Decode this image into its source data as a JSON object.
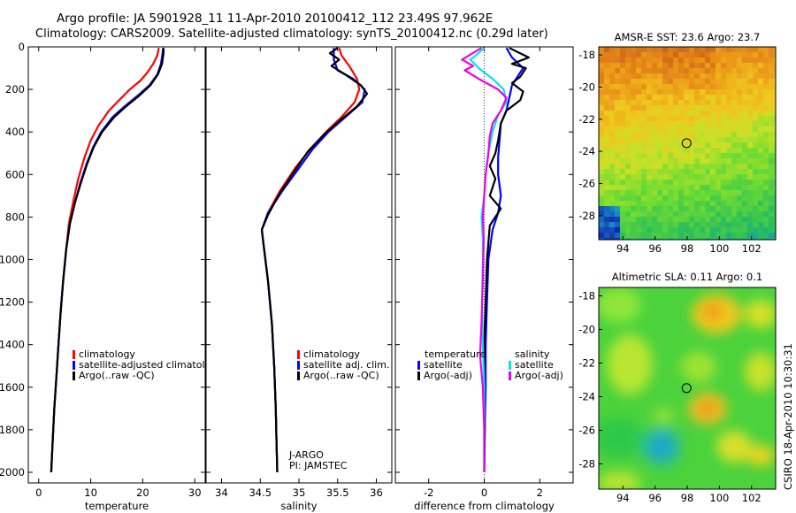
{
  "header": {
    "line1": "Argo profile: JA 5901928_11 11-Apr-2010 20100412_112 23.49S 97.962E",
    "line2": "Climatology: CARS2009. Satellite-adjusted climatology: synTS_20100412.nc (0.29d later)"
  },
  "footer": {
    "side_text": "CSIRO 18-Apr-2010 10:30:31"
  },
  "colors": {
    "climatology": "#ff0000",
    "satellite": "#0000ff",
    "argo": "#000000",
    "sal_satellite": "#00e5ee",
    "sal_argo": "#ee00ee"
  },
  "chart_data": [
    {
      "type": "line",
      "xlabel": "temperature",
      "xlim": [
        -2,
        32
      ],
      "ylim": [
        2050,
        0
      ],
      "xticks": [
        "0",
        "10",
        "20",
        "30"
      ],
      "yticks": [
        "0",
        "200",
        "400",
        "600",
        "800",
        "1000",
        "1200",
        "1400",
        "1600",
        "1800",
        "2000"
      ],
      "legend": [
        "climatology",
        "satellite-adjusted climatology",
        "Argo(..raw -QC)"
      ],
      "series": [
        {
          "name": "climatology",
          "color": "#ff0000",
          "points": [
            [
              23.1,
              5
            ],
            [
              22.8,
              40
            ],
            [
              22.0,
              80
            ],
            [
              20.9,
              120
            ],
            [
              19.5,
              160
            ],
            [
              17.5,
              200
            ],
            [
              15.5,
              250
            ],
            [
              13.5,
              300
            ],
            [
              11.5,
              370
            ],
            [
              10.0,
              440
            ],
            [
              8.8,
              520
            ],
            [
              7.6,
              620
            ],
            [
              6.7,
              720
            ],
            [
              5.8,
              830
            ],
            [
              5.3,
              950
            ],
            [
              4.7,
              1100
            ],
            [
              4.2,
              1250
            ],
            [
              3.8,
              1400
            ],
            [
              3.4,
              1550
            ],
            [
              3.0,
              1700
            ],
            [
              2.7,
              1850
            ],
            [
              2.4,
              2000
            ]
          ]
        },
        {
          "name": "satellite-adjusted climatology",
          "color": "#0000ff",
          "points": [
            [
              23.9,
              5
            ],
            [
              23.8,
              30
            ],
            [
              23.5,
              80
            ],
            [
              22.8,
              130
            ],
            [
              21.3,
              180
            ],
            [
              19.0,
              230
            ],
            [
              16.5,
              280
            ],
            [
              14.2,
              330
            ],
            [
              12.0,
              400
            ],
            [
              10.5,
              470
            ],
            [
              9.2,
              550
            ],
            [
              8.0,
              640
            ],
            [
              7.0,
              730
            ],
            [
              6.0,
              830
            ],
            [
              5.3,
              950
            ],
            [
              4.7,
              1100
            ],
            [
              4.2,
              1250
            ],
            [
              3.8,
              1400
            ],
            [
              3.4,
              1550
            ],
            [
              3.0,
              1700
            ],
            [
              2.7,
              1850
            ],
            [
              2.4,
              2000
            ]
          ]
        },
        {
          "name": "Argo(..raw -QC)",
          "color": "#000000",
          "points": [
            [
              24.0,
              5
            ],
            [
              24.0,
              30
            ],
            [
              23.7,
              80
            ],
            [
              22.9,
              130
            ],
            [
              21.5,
              180
            ],
            [
              19.3,
              230
            ],
            [
              16.8,
              280
            ],
            [
              14.5,
              330
            ],
            [
              12.2,
              400
            ],
            [
              10.6,
              470
            ],
            [
              9.3,
              550
            ],
            [
              8.1,
              640
            ],
            [
              7.0,
              730
            ],
            [
              6.0,
              830
            ],
            [
              5.3,
              950
            ],
            [
              4.7,
              1100
            ],
            [
              4.2,
              1250
            ],
            [
              3.8,
              1400
            ],
            [
              3.4,
              1550
            ],
            [
              3.0,
              1700
            ],
            [
              2.7,
              1850
            ],
            [
              2.4,
              2000
            ]
          ]
        }
      ]
    },
    {
      "type": "line",
      "xlabel": "salinity",
      "xlim": [
        33.8,
        36.2
      ],
      "ylim": [
        2050,
        0
      ],
      "xticks": [
        "34",
        "34.5",
        "35",
        "35.5",
        "36"
      ],
      "legend": [
        "climatology",
        "satellite adj. clim.",
        "Argo(..raw -QC)"
      ],
      "annotation": [
        "J-ARGO",
        "PI: JAMSTEC"
      ],
      "series": [
        {
          "name": "climatology",
          "color": "#ff0000",
          "points": [
            [
              35.52,
              5
            ],
            [
              35.55,
              40
            ],
            [
              35.65,
              90
            ],
            [
              35.75,
              150
            ],
            [
              35.78,
              200
            ],
            [
              35.72,
              260
            ],
            [
              35.55,
              330
            ],
            [
              35.35,
              400
            ],
            [
              35.15,
              480
            ],
            [
              34.95,
              570
            ],
            [
              34.75,
              680
            ],
            [
              34.6,
              780
            ],
            [
              34.52,
              860
            ],
            [
              34.55,
              950
            ],
            [
              34.6,
              1100
            ],
            [
              34.65,
              1300
            ],
            [
              34.68,
              1500
            ],
            [
              34.7,
              1700
            ],
            [
              34.71,
              1850
            ],
            [
              34.72,
              2000
            ]
          ]
        },
        {
          "name": "satellite adj. clim.",
          "color": "#0000ff",
          "points": [
            [
              35.45,
              5
            ],
            [
              35.45,
              60
            ],
            [
              35.5,
              110
            ],
            [
              35.7,
              150
            ],
            [
              35.85,
              200
            ],
            [
              35.82,
              260
            ],
            [
              35.6,
              330
            ],
            [
              35.38,
              400
            ],
            [
              35.18,
              480
            ],
            [
              35.0,
              570
            ],
            [
              34.78,
              680
            ],
            [
              34.6,
              780
            ],
            [
              34.52,
              860
            ],
            [
              34.55,
              950
            ],
            [
              34.6,
              1100
            ],
            [
              34.65,
              1300
            ],
            [
              34.68,
              1500
            ],
            [
              34.7,
              1700
            ],
            [
              34.71,
              1850
            ],
            [
              34.72,
              2000
            ]
          ]
        },
        {
          "name": "Argo(..raw -QC)",
          "color": "#000000",
          "points": [
            [
              35.5,
              5
            ],
            [
              35.4,
              30
            ],
            [
              35.52,
              60
            ],
            [
              35.42,
              90
            ],
            [
              35.6,
              130
            ],
            [
              35.8,
              180
            ],
            [
              35.88,
              220
            ],
            [
              35.75,
              280
            ],
            [
              35.55,
              340
            ],
            [
              35.33,
              410
            ],
            [
              35.12,
              490
            ],
            [
              34.95,
              580
            ],
            [
              34.75,
              690
            ],
            [
              34.6,
              790
            ],
            [
              34.52,
              860
            ],
            [
              34.55,
              950
            ],
            [
              34.6,
              1100
            ],
            [
              34.65,
              1300
            ],
            [
              34.68,
              1500
            ],
            [
              34.7,
              1700
            ],
            [
              34.71,
              1850
            ],
            [
              34.72,
              2000
            ]
          ]
        }
      ]
    },
    {
      "type": "line",
      "xlabel": "difference from climatology",
      "xlim": [
        -3.2,
        3.2
      ],
      "ylim": [
        2050,
        0
      ],
      "xticks": [
        "-2",
        "0",
        "2"
      ],
      "legend_temperature": {
        "heading": "temperature",
        "items": [
          "satellite",
          "Argo(-adj)"
        ]
      },
      "legend_salinity": {
        "heading": "salinity",
        "items": [
          "satellite",
          "Argo(-adj)"
        ]
      },
      "series": [
        {
          "name": "satellite",
          "group": "temperature",
          "color": "#0000ff",
          "points": [
            [
              0.8,
              5
            ],
            [
              1.0,
              50
            ],
            [
              1.4,
              100
            ],
            [
              1.0,
              180
            ],
            [
              0.9,
              240
            ],
            [
              0.8,
              300
            ],
            [
              0.6,
              360
            ],
            [
              0.55,
              440
            ],
            [
              0.5,
              520
            ],
            [
              0.5,
              600
            ],
            [
              0.6,
              700
            ],
            [
              0.5,
              780
            ],
            [
              0.3,
              860
            ],
            [
              0.15,
              1000
            ],
            [
              0.1,
              1200
            ],
            [
              0.05,
              1400
            ],
            [
              0.05,
              1600
            ],
            [
              0.02,
              1800
            ],
            [
              0.0,
              2000
            ]
          ]
        },
        {
          "name": "Argo(-adj)",
          "group": "temperature",
          "color": "#000000",
          "points": [
            [
              0.9,
              5
            ],
            [
              1.6,
              50
            ],
            [
              1.0,
              80
            ],
            [
              1.5,
              100
            ],
            [
              1.3,
              140
            ],
            [
              1.0,
              170
            ],
            [
              1.4,
              210
            ],
            [
              1.3,
              250
            ],
            [
              0.8,
              300
            ],
            [
              0.6,
              360
            ],
            [
              0.5,
              440
            ],
            [
              0.4,
              500
            ],
            [
              0.2,
              560
            ],
            [
              0.4,
              620
            ],
            [
              0.2,
              700
            ],
            [
              0.6,
              760
            ],
            [
              0.2,
              840
            ],
            [
              0.1,
              1000
            ],
            [
              0.05,
              1200
            ],
            [
              0.0,
              1400
            ],
            [
              0.0,
              1600
            ],
            [
              0.02,
              1800
            ],
            [
              0.0,
              2000
            ]
          ]
        },
        {
          "name": "satellite",
          "group": "salinity",
          "color": "#00e5ee",
          "points": [
            [
              0.0,
              5
            ],
            [
              -0.3,
              40
            ],
            [
              -0.5,
              60
            ],
            [
              -0.2,
              100
            ],
            [
              0.3,
              150
            ],
            [
              0.7,
              200
            ],
            [
              0.8,
              260
            ],
            [
              0.5,
              320
            ],
            [
              0.3,
              400
            ],
            [
              0.15,
              500
            ],
            [
              0.05,
              600
            ],
            [
              0.0,
              700
            ],
            [
              -0.1,
              800
            ],
            [
              -0.05,
              900
            ],
            [
              -0.05,
              1000
            ],
            [
              -0.08,
              1200
            ],
            [
              -0.05,
              1400
            ],
            [
              0.0,
              1600
            ],
            [
              0.0,
              1800
            ],
            [
              0.0,
              2000
            ]
          ]
        },
        {
          "name": "Argo(-adj)",
          "group": "salinity",
          "color": "#ee00ee",
          "points": [
            [
              -0.1,
              5
            ],
            [
              -0.8,
              60
            ],
            [
              -0.4,
              90
            ],
            [
              -0.7,
              110
            ],
            [
              -0.2,
              150
            ],
            [
              0.5,
              200
            ],
            [
              0.8,
              240
            ],
            [
              0.6,
              300
            ],
            [
              0.3,
              360
            ],
            [
              0.2,
              420
            ],
            [
              0.15,
              500
            ],
            [
              0.05,
              600
            ],
            [
              0.0,
              700
            ],
            [
              -0.05,
              800
            ],
            [
              -0.02,
              900
            ],
            [
              -0.05,
              1100
            ],
            [
              -0.1,
              1300
            ],
            [
              -0.15,
              1450
            ],
            [
              -0.05,
              1600
            ],
            [
              0.0,
              1800
            ],
            [
              0.0,
              2000
            ]
          ]
        }
      ]
    },
    {
      "type": "heatmap",
      "title": "AMSR-E SST: 23.6 Argo: 23.7",
      "xlim": [
        92.5,
        103.5
      ],
      "ylim": [
        -29.5,
        -17.5
      ],
      "xticks": [
        "94",
        "96",
        "98",
        "100",
        "102"
      ],
      "yticks": [
        "-18",
        "-20",
        "-22",
        "-24",
        "-26",
        "-28"
      ],
      "marker": {
        "lon": 97.96,
        "lat": -23.49
      }
    },
    {
      "type": "heatmap",
      "title": "Altimetric SLA: 0.11 Argo: 0.1",
      "xlim": [
        92.5,
        103.5
      ],
      "ylim": [
        -29.5,
        -17.5
      ],
      "xticks": [
        "94",
        "96",
        "98",
        "100",
        "102"
      ],
      "yticks": [
        "-18",
        "-20",
        "-22",
        "-24",
        "-26",
        "-28"
      ],
      "marker": {
        "lon": 97.96,
        "lat": -23.49
      }
    }
  ]
}
